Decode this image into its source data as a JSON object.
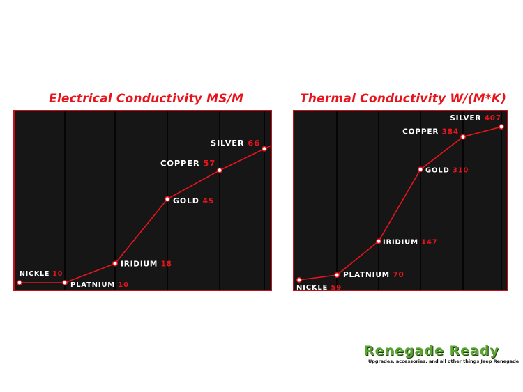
{
  "chart_data": [
    {
      "type": "line",
      "title": "Electrical Conductivity MS/M",
      "categories": [
        "NICKLE",
        "PLATNIUM",
        "IRIDIUM",
        "GOLD",
        "COPPER",
        "SILVER"
      ],
      "values": [
        10,
        10,
        18,
        45,
        57,
        66
      ],
      "value_labels": [
        "10",
        "10",
        "18",
        "45",
        "57",
        "66"
      ],
      "ylim": [
        10,
        70
      ],
      "grid": "vertical",
      "colors": {
        "line": "#e8141c",
        "background": "#161616",
        "grid": "#050505",
        "label": "#ffffff",
        "value": "#e8141c"
      }
    },
    {
      "type": "line",
      "title": "Thermal Conductivity W/(M*K)",
      "categories": [
        "NICKLE",
        "PLATNIUM",
        "IRIDIUM",
        "GOLD",
        "COPPER",
        "SILVER"
      ],
      "values": [
        59,
        70,
        147,
        310,
        384,
        407
      ],
      "value_labels": [
        "59",
        "70",
        "147",
        "310",
        "384",
        "407"
      ],
      "ylim": [
        59,
        407
      ],
      "grid": "vertical",
      "colors": {
        "line": "#e8141c",
        "background": "#161616",
        "grid": "#050505",
        "label": "#ffffff",
        "value": "#e8141c"
      }
    }
  ],
  "logo": {
    "title": "Renegade Ready",
    "subtitle": "Upgrades, accessories, and all other things Jeep Renegade",
    "colors": {
      "title": "#5aa532",
      "subtitle": "#111111"
    }
  }
}
